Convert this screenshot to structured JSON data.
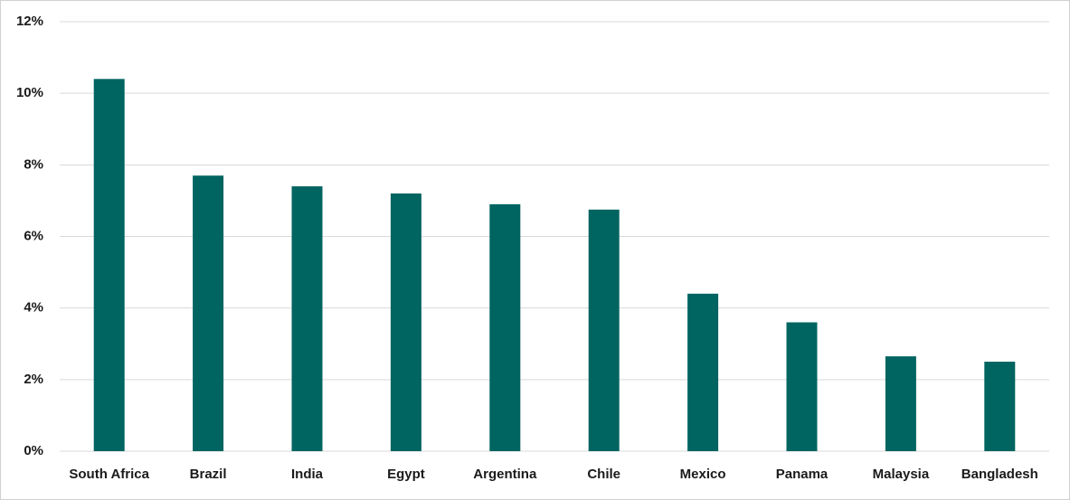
{
  "chart_data": {
    "type": "bar",
    "categories": [
      "South Africa",
      "Brazil",
      "India",
      "Egypt",
      "Argentina",
      "Chile",
      "Mexico",
      "Panama",
      "Malaysia",
      "Bangladesh"
    ],
    "values": [
      10.4,
      7.7,
      7.4,
      7.2,
      6.9,
      6.75,
      4.4,
      3.6,
      2.65,
      2.5
    ],
    "color": "#006461",
    "ylim": [
      0,
      12
    ],
    "yticks": [
      {
        "value": 0,
        "label": "0%"
      },
      {
        "value": 2,
        "label": "2%"
      },
      {
        "value": 4,
        "label": "4%"
      },
      {
        "value": 6,
        "label": "6%"
      },
      {
        "value": 8,
        "label": "8%"
      },
      {
        "value": 10,
        "label": "10%"
      },
      {
        "value": 12,
        "label": "12%"
      }
    ],
    "grid": true
  }
}
